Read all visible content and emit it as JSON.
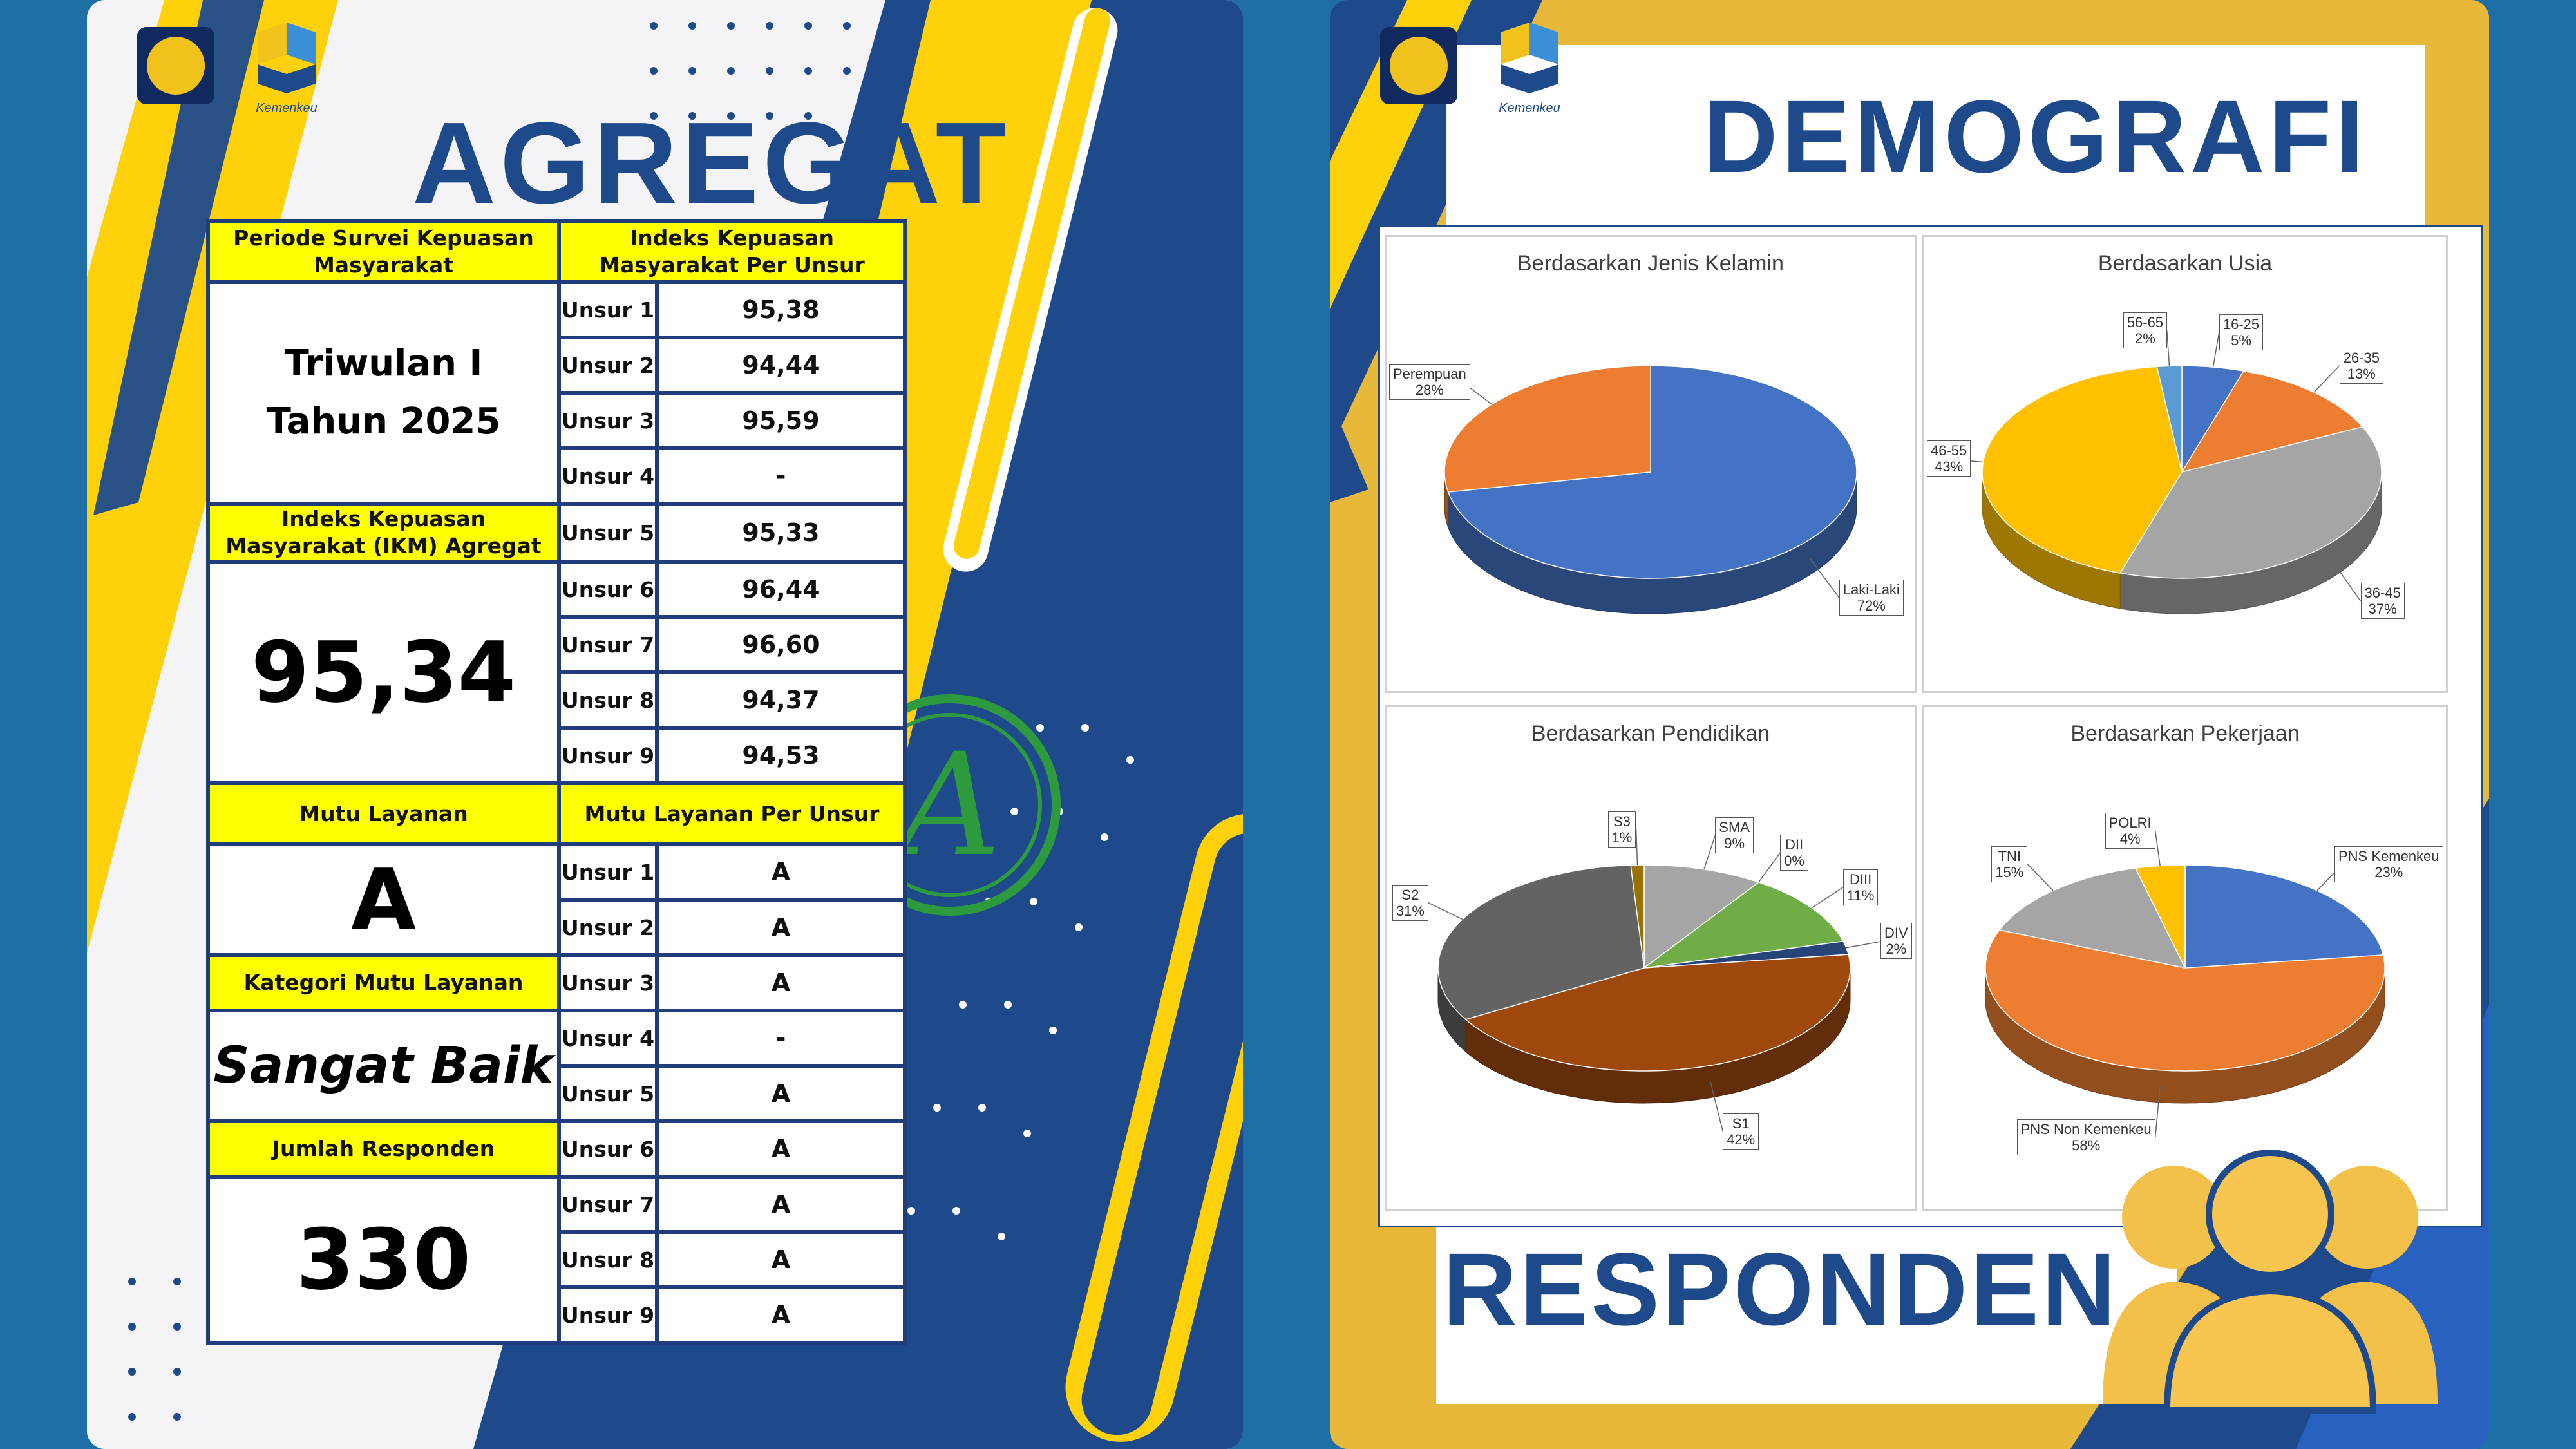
{
  "left": {
    "title": "AGREGAT",
    "logo_caption": "Kemenkeu",
    "table": {
      "header_periode": "Periode Survei Kepuasan Masyarakat",
      "header_indeks": "Indeks Kepuasan Masyarakat Per Unsur",
      "periode": [
        "Triwulan I",
        "Tahun 2025"
      ],
      "header_ikm": "Indeks Kepuasan Masyarakat (IKM) Agregat",
      "ikm_value": "95,34",
      "header_mutu": "Mutu Layanan",
      "header_mutu_unsur": "Mutu Layanan Per Unsur",
      "mutu_value": "A",
      "header_kategori": "Kategori Mutu Layanan",
      "kategori_value": "Sangat Baik",
      "header_jumlah": "Jumlah Responden",
      "jumlah_value": "330",
      "indeks_rows": [
        {
          "label": "Unsur 1",
          "value": "95,38"
        },
        {
          "label": "Unsur 2",
          "value": "94,44"
        },
        {
          "label": "Unsur 3",
          "value": "95,59"
        },
        {
          "label": "Unsur 4",
          "value": "-"
        },
        {
          "label": "Unsur 5",
          "value": "95,33"
        },
        {
          "label": "Unsur 6",
          "value": "96,44"
        },
        {
          "label": "Unsur 7",
          "value": "96,60"
        },
        {
          "label": "Unsur 8",
          "value": "94,37"
        },
        {
          "label": "Unsur 9",
          "value": "94,53"
        }
      ],
      "mutu_rows": [
        {
          "label": "Unsur 1",
          "value": "A"
        },
        {
          "label": "Unsur 2",
          "value": "A"
        },
        {
          "label": "Unsur 3",
          "value": "A"
        },
        {
          "label": "Unsur 4",
          "value": "-"
        },
        {
          "label": "Unsur 5",
          "value": "A"
        },
        {
          "label": "Unsur 6",
          "value": "A"
        },
        {
          "label": "Unsur 7",
          "value": "A"
        },
        {
          "label": "Unsur 8",
          "value": "A"
        },
        {
          "label": "Unsur 9",
          "value": "A"
        }
      ]
    },
    "stamp_letter": "A"
  },
  "right": {
    "title": "DEMOGRAFI",
    "subtitle": "RESPONDEN",
    "logo_caption": "Kemenkeu"
  },
  "chart_data": [
    {
      "type": "pie",
      "title": "Berdasarkan Jenis Kelamin",
      "categories": [
        "Laki-Laki",
        "Perempuan"
      ],
      "values": [
        72,
        28
      ],
      "colors": [
        "#4472c4",
        "#ed7d31"
      ]
    },
    {
      "type": "pie",
      "title": "Berdasarkan Usia",
      "categories": [
        "16-25",
        "26-35",
        "36-45",
        "46-55",
        "56-65"
      ],
      "values": [
        5,
        13,
        37,
        43,
        2
      ],
      "colors": [
        "#4472c4",
        "#ed7d31",
        "#a5a5a5",
        "#ffc000",
        "#5b9bd5"
      ]
    },
    {
      "type": "pie",
      "title": "Berdasarkan Pendidikan",
      "categories": [
        "SMA",
        "DII",
        "DIII",
        "DIV",
        "S1",
        "S2",
        "S3"
      ],
      "values": [
        9,
        0,
        11,
        2,
        42,
        31,
        1
      ],
      "colors": [
        "#a5a5a5",
        "#ffc000",
        "#70ad47",
        "#264478",
        "#9e480e",
        "#636363",
        "#997300"
      ]
    },
    {
      "type": "pie",
      "title": "Berdasarkan Pekerjaan",
      "categories": [
        "PNS Kemenkeu",
        "PNS Non Kemenkeu",
        "TNI",
        "POLRI"
      ],
      "values": [
        23,
        58,
        15,
        4
      ],
      "colors": [
        "#4472c4",
        "#ed7d31",
        "#a5a5a5",
        "#ffc000"
      ]
    }
  ]
}
